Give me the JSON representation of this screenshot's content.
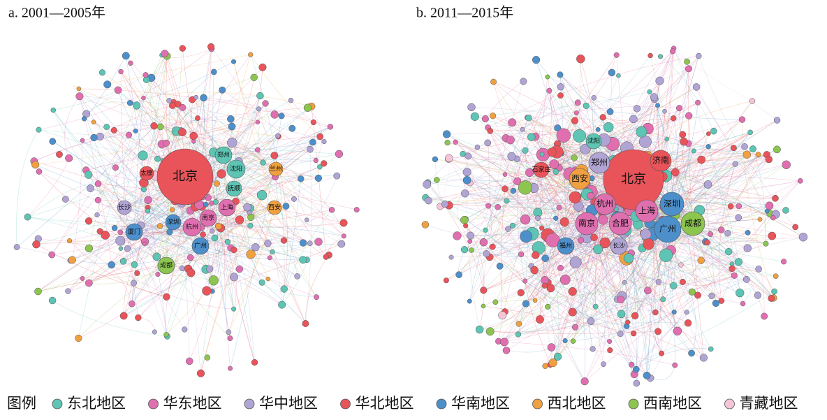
{
  "panels": [
    {
      "title": "a. 2001—2005年",
      "nodes": [
        {
          "label": "北京"
        },
        {
          "label": "郑州"
        },
        {
          "label": "沈阳"
        },
        {
          "label": "兰州"
        },
        {
          "label": "太原"
        },
        {
          "label": "抚顺"
        },
        {
          "label": "上海"
        },
        {
          "label": "西安"
        },
        {
          "label": "长沙"
        },
        {
          "label": "深圳"
        },
        {
          "label": "杭州"
        },
        {
          "label": "南京"
        },
        {
          "label": "厦门"
        },
        {
          "label": "广州"
        },
        {
          "label": "成都"
        }
      ]
    },
    {
      "title": "b. 2011—2015年",
      "nodes": [
        {
          "label": "北京"
        },
        {
          "label": "济南"
        },
        {
          "label": "沈阳"
        },
        {
          "label": "郑州"
        },
        {
          "label": "石家庄"
        },
        {
          "label": "西安"
        },
        {
          "label": "深圳"
        },
        {
          "label": "杭州"
        },
        {
          "label": "上海"
        },
        {
          "label": "成都"
        },
        {
          "label": "南京"
        },
        {
          "label": "合肥"
        },
        {
          "label": "广州"
        },
        {
          "label": "福州"
        },
        {
          "label": "长沙"
        }
      ]
    }
  ],
  "legend": {
    "title": "图例",
    "items": [
      {
        "label": "东北地区",
        "color": "#5ec4b3"
      },
      {
        "label": "华东地区",
        "color": "#e06fb0"
      },
      {
        "label": "华中地区",
        "color": "#b0a4d4"
      },
      {
        "label": "华北地区",
        "color": "#e8545a"
      },
      {
        "label": "华南地区",
        "color": "#4c8fca"
      },
      {
        "label": "西北地区",
        "color": "#f0a040"
      },
      {
        "label": "西南地区",
        "color": "#8cc54f"
      },
      {
        "label": "青藏地区",
        "color": "#f5c4d6"
      }
    ]
  }
}
